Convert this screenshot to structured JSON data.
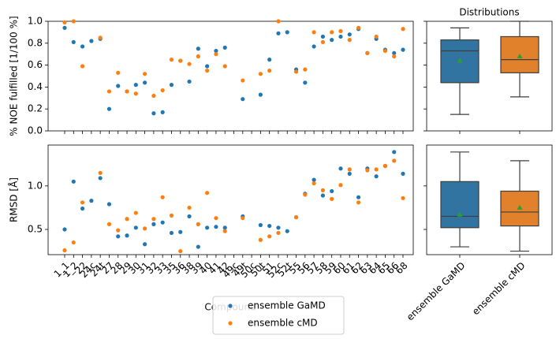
{
  "chart_data": [
    {
      "type": "scatter",
      "ylabel": "% NOE fulfilled [1/100 %]",
      "ylim": [
        0,
        1
      ],
      "yticks": [
        {
          "value": 0,
          "label": "0.0"
        },
        0.2,
        0.4,
        0.6,
        0.8,
        {
          "value": 1,
          "label": "1.0"
        }
      ],
      "series": [
        {
          "color": "#1f77b4",
          "values": [
            0.94,
            0.81,
            0.77,
            0.82,
            0.84,
            0.2,
            0.41,
            0.36,
            0.42,
            0.44,
            0.16,
            0.17,
            0.42,
            0.64,
            0.45,
            0.75,
            0.59,
            0.73,
            0.76,
            null,
            0.29,
            null,
            0.33,
            0.65,
            0.89,
            0.9,
            0.56,
            0.44,
            0.77,
            0.86,
            0.83,
            0.86,
            0.88,
            0.93,
            0.71,
            0.84,
            0.74,
            0.71,
            0.74
          ]
        },
        {
          "color": "#ff7f0e",
          "values": [
            0.99,
            1.0,
            0.59,
            null,
            0.85,
            0.36,
            0.53,
            0.36,
            0.34,
            0.52,
            0.32,
            0.37,
            0.65,
            0.64,
            0.61,
            0.68,
            0.55,
            0.7,
            0.59,
            null,
            0.46,
            null,
            0.52,
            0.55,
            1.0,
            null,
            0.54,
            0.56,
            0.9,
            0.81,
            0.9,
            0.91,
            0.83,
            0.94,
            0.71,
            0.86,
            0.73,
            0.68,
            0.93
          ]
        }
      ]
    },
    {
      "type": "scatter",
      "ylabel": "RMSD [Å]",
      "xlabel": "Compound",
      "categories": [
        "1_1",
        "1_2",
        "22",
        "24c",
        "24t",
        "27",
        "28",
        "29",
        "30",
        "31",
        "32",
        "33",
        "35",
        "36",
        "38",
        "39",
        "40",
        "41",
        "42",
        "49c",
        "49t",
        "50c",
        "50t",
        "51",
        "52c",
        "52t",
        "55",
        "56",
        "57",
        "58",
        "59",
        "60",
        "61",
        "62",
        "63",
        "64",
        "65",
        "66",
        "68"
      ],
      "ylim": [
        0.21,
        1.47
      ],
      "yticks": [
        0.5,
        {
          "value": 1,
          "label": "1.0"
        }
      ],
      "legend": "lower center",
      "series": [
        {
          "name": "ensemble GaMD",
          "color": "#1f77b4",
          "values": [
            0.5,
            1.05,
            0.74,
            0.83,
            1.09,
            0.79,
            0.42,
            0.43,
            0.52,
            0.33,
            0.56,
            0.58,
            0.46,
            0.47,
            0.65,
            0.3,
            0.52,
            0.53,
            0.52,
            null,
            0.65,
            null,
            0.55,
            0.54,
            0.52,
            0.48,
            0.64,
            0.91,
            1.07,
            0.89,
            0.94,
            1.2,
            1.14,
            0.87,
            1.2,
            1.11,
            1.23,
            1.39,
            1.14
          ]
        },
        {
          "name": "ensemble cMD",
          "color": "#ff7f0e",
          "values": [
            0.26,
            0.35,
            0.81,
            null,
            1.15,
            0.56,
            0.49,
            0.62,
            0.69,
            0.51,
            0.62,
            0.87,
            0.66,
            0.25,
            0.75,
            0.56,
            0.92,
            0.63,
            0.48,
            null,
            0.63,
            null,
            0.38,
            0.42,
            0.46,
            null,
            0.64,
            0.9,
            1.03,
            0.95,
            0.85,
            1.01,
            1.19,
            0.81,
            1.18,
            1.19,
            1.23,
            1.29,
            0.86
          ]
        }
      ]
    },
    {
      "type": "box",
      "title": "Distributions",
      "ylim": [
        0,
        1
      ],
      "mean_color": "#2ca02c",
      "boxes": [
        {
          "color": "#3274a1",
          "min": 0.15,
          "q1": 0.44,
          "median": 0.73,
          "q3": 0.83,
          "max": 0.94,
          "mean": 0.64
        },
        {
          "color": "#e1812c",
          "min": 0.31,
          "q1": 0.53,
          "median": 0.65,
          "q3": 0.86,
          "max": 1.0,
          "mean": 0.68
        }
      ]
    },
    {
      "type": "box",
      "ylim": [
        0.21,
        1.47
      ],
      "mean_color": "#2ca02c",
      "categories": [
        "ensemble GaMD",
        "ensemble cMD"
      ],
      "boxes": [
        {
          "color": "#3274a1",
          "min": 0.3,
          "q1": 0.52,
          "median": 0.65,
          "q3": 1.05,
          "max": 1.39,
          "mean": 0.67
        },
        {
          "color": "#e1812c",
          "min": 0.25,
          "q1": 0.54,
          "median": 0.7,
          "q3": 0.94,
          "max": 1.29,
          "mean": 0.75
        }
      ]
    }
  ]
}
